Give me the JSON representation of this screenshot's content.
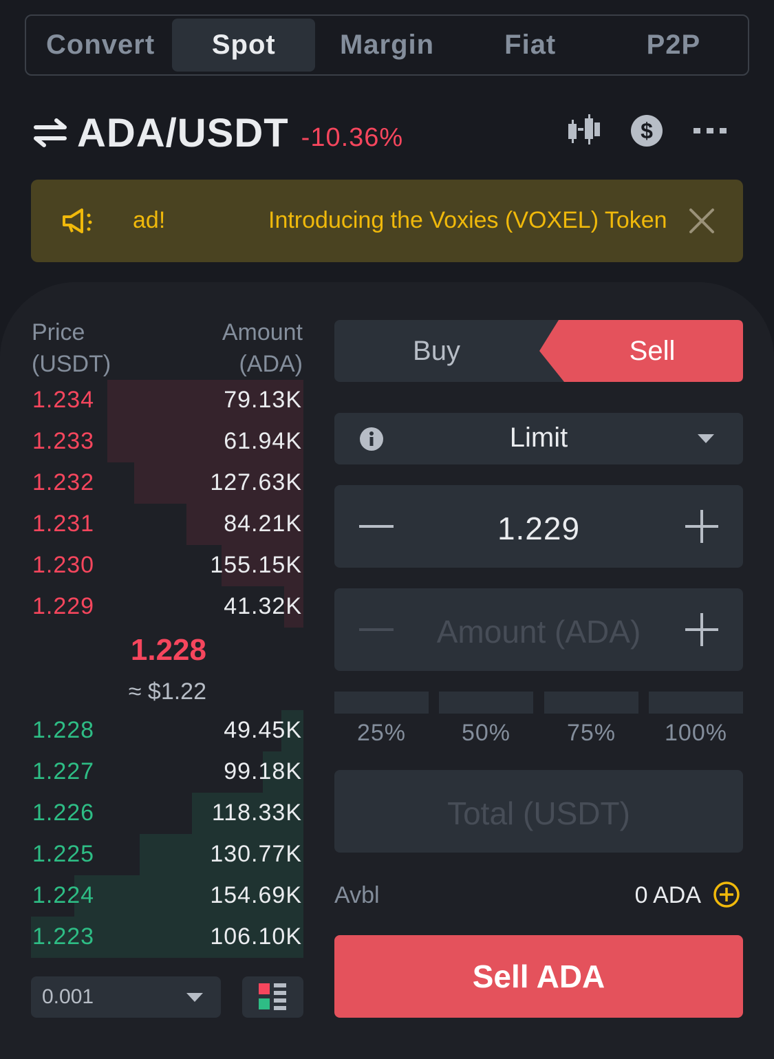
{
  "top_tabs": [
    "Convert",
    "Spot",
    "Margin",
    "Fiat",
    "P2P"
  ],
  "active_tab": "Spot",
  "pair": {
    "name": "ADA/USDT",
    "change": "-10.36%"
  },
  "header_icons": [
    "candlestick-chart-icon",
    "dollar-coin-icon",
    "more-icon"
  ],
  "announcement": {
    "ticker_left": "ad!",
    "text": "Introducing the Voxies (VOXEL) Token"
  },
  "orderbook": {
    "price_header": [
      "Price",
      "(USDT)"
    ],
    "amount_header": [
      "Amount",
      "(ADA)"
    ],
    "asks": [
      {
        "price": "1.234",
        "amount": "79.13K",
        "depth": 0.72
      },
      {
        "price": "1.233",
        "amount": "61.94K",
        "depth": 0.72
      },
      {
        "price": "1.232",
        "amount": "127.63K",
        "depth": 0.62
      },
      {
        "price": "1.231",
        "amount": "84.21K",
        "depth": 0.43
      },
      {
        "price": "1.230",
        "amount": "155.15K",
        "depth": 0.3
      },
      {
        "price": "1.229",
        "amount": "41.32K",
        "depth": 0.07
      }
    ],
    "mid_price": "1.228",
    "mid_usd": "≈ $1.22",
    "bids": [
      {
        "price": "1.228",
        "amount": "49.45K",
        "depth": 0.08
      },
      {
        "price": "1.227",
        "amount": "99.18K",
        "depth": 0.15
      },
      {
        "price": "1.226",
        "amount": "118.33K",
        "depth": 0.41
      },
      {
        "price": "1.225",
        "amount": "130.77K",
        "depth": 0.6
      },
      {
        "price": "1.224",
        "amount": "154.69K",
        "depth": 0.84
      },
      {
        "price": "1.223",
        "amount": "106.10K",
        "depth": 1.0
      }
    ],
    "tick_size": "0.001"
  },
  "form": {
    "buy_label": "Buy",
    "sell_label": "Sell",
    "order_type": "Limit",
    "price_value": "1.229",
    "amount_placeholder": "Amount (ADA)",
    "percentages": [
      "25%",
      "50%",
      "75%",
      "100%"
    ],
    "total_placeholder": "Total (USDT)",
    "avbl_label": "Avbl",
    "avbl_value": "0 ADA",
    "submit_label": "Sell ADA"
  },
  "colors": {
    "ask": "#f6465d",
    "bid": "#2ebd85",
    "accent": "#f0b90b",
    "sell_button": "#e4525c"
  }
}
